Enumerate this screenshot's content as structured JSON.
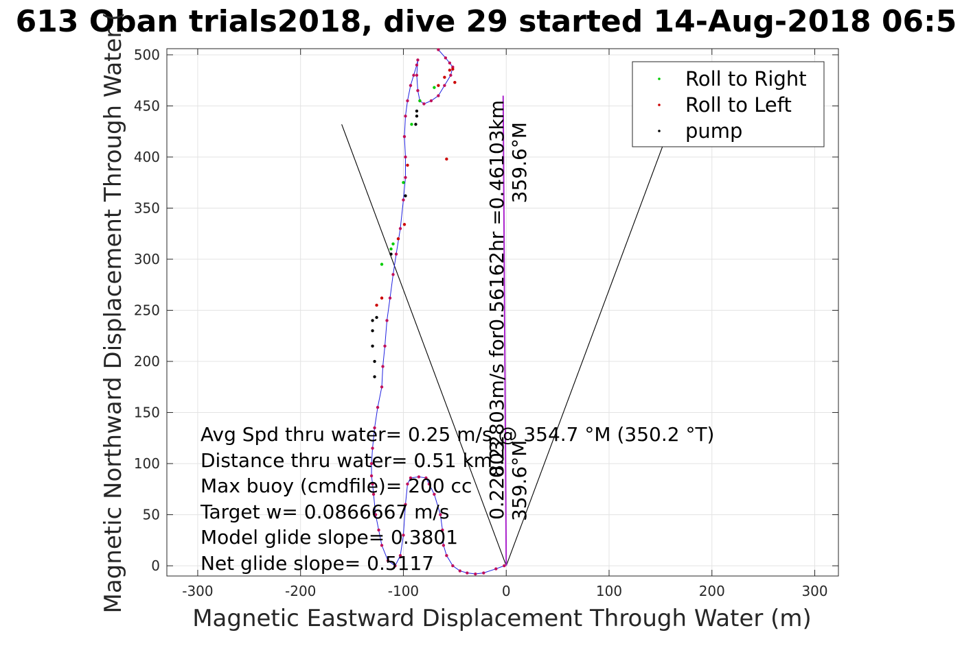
{
  "chart_data": {
    "type": "scatter",
    "title": "613 Oban trials2018, dive 29 started 14-Aug-2018 06:5",
    "xlabel": "Magnetic Eastward Displacement Through Water (m)",
    "ylabel": "Magnetic Northward Displacement Through Water (",
    "xlim": [
      -330,
      323
    ],
    "ylim": [
      -10,
      506
    ],
    "xticks": [
      -300,
      -200,
      -100,
      0,
      100,
      200,
      300
    ],
    "yticks": [
      0,
      50,
      100,
      150,
      200,
      250,
      300,
      350,
      400,
      450,
      500
    ],
    "grid": true,
    "legend_position": "top-right",
    "legend": [
      "Roll to Right",
      "Roll to Left",
      "pump"
    ],
    "colors": {
      "track": "#1f1fe0",
      "roll_right": "#00cc00",
      "roll_left": "#cc0000",
      "pump": "#000000",
      "current_line": "#aa22cc",
      "guide_lines": "#000000"
    },
    "track": {
      "x": [
        -2,
        -10,
        -22,
        -30,
        -38,
        -45,
        -52,
        -58,
        -61,
        -62,
        -64,
        -70,
        -75,
        -78,
        -85,
        -93,
        -96,
        -98,
        -100,
        -103,
        -108,
        -115,
        -121,
        -124,
        -127,
        -129,
        -130,
        -131,
        -131,
        -130,
        -128,
        -125,
        -121,
        -120,
        -118,
        -116,
        -113,
        -110,
        -107,
        -103,
        -100,
        -98,
        -98,
        -99,
        -98,
        -96,
        -93,
        -90,
        -87,
        -86,
        -87,
        -86,
        -84,
        -80,
        -73,
        -66,
        -60,
        -54,
        -52,
        -55,
        -59,
        -66
      ],
      "y": [
        0,
        -3,
        -7,
        -8,
        -7,
        -5,
        0,
        10,
        20,
        35,
        50,
        70,
        80,
        86,
        87,
        86,
        80,
        60,
        30,
        10,
        0,
        5,
        20,
        35,
        50,
        70,
        80,
        88,
        100,
        115,
        135,
        155,
        175,
        195,
        215,
        240,
        262,
        285,
        305,
        330,
        358,
        380,
        400,
        420,
        440,
        455,
        470,
        480,
        490,
        495,
        480,
        465,
        455,
        452,
        455,
        460,
        470,
        480,
        488,
        492,
        497,
        505
      ]
    },
    "roll_right": {
      "x": [
        -84,
        -100,
        -110,
        -121,
        -92,
        -70,
        -112
      ],
      "y": [
        455,
        375,
        315,
        295,
        432,
        468,
        310
      ]
    },
    "roll_left": {
      "x": [
        -66,
        -60,
        -55,
        -52,
        -58,
        -96,
        -99,
        -105,
        -121,
        -126,
        -50
      ],
      "y": [
        470,
        478,
        485,
        486,
        398,
        392,
        334,
        320,
        262,
        255,
        473
      ]
    },
    "pump": {
      "x": [
        -87,
        -87,
        -88,
        -98,
        -112,
        -130,
        -130,
        -130,
        -128,
        -128,
        -126
      ],
      "y": [
        445,
        440,
        432,
        362,
        305,
        240,
        230,
        215,
        200,
        185,
        243
      ]
    },
    "current_line": {
      "x": [
        0,
        -3
      ],
      "y": [
        0,
        460
      ]
    },
    "guide_lines": [
      {
        "x": [
          0,
          -160
        ],
        "y": [
          0,
          432
        ]
      },
      {
        "x": [
          0,
          160
        ],
        "y": [
          0,
          432
        ]
      }
    ],
    "annotations": [
      "Avg Spd thru water=  0.25 m/s @ 354.7 °M (350.2 °T)",
      "Distance thru water=  0.51 km",
      "Max buoy (cmdfile)= 200 cc",
      "Target w= 0.0866667 m/s",
      "Model glide slope= 0.3801",
      "Net glide slope= 0.5117"
    ],
    "current_label_main": "0.22803m/s for0.56162hr =0.46103km",
    "current_label_main_bearing": "359.6°M",
    "current_label_small": "0.22803",
    "current_label_small_bearing": "359.6°M"
  }
}
